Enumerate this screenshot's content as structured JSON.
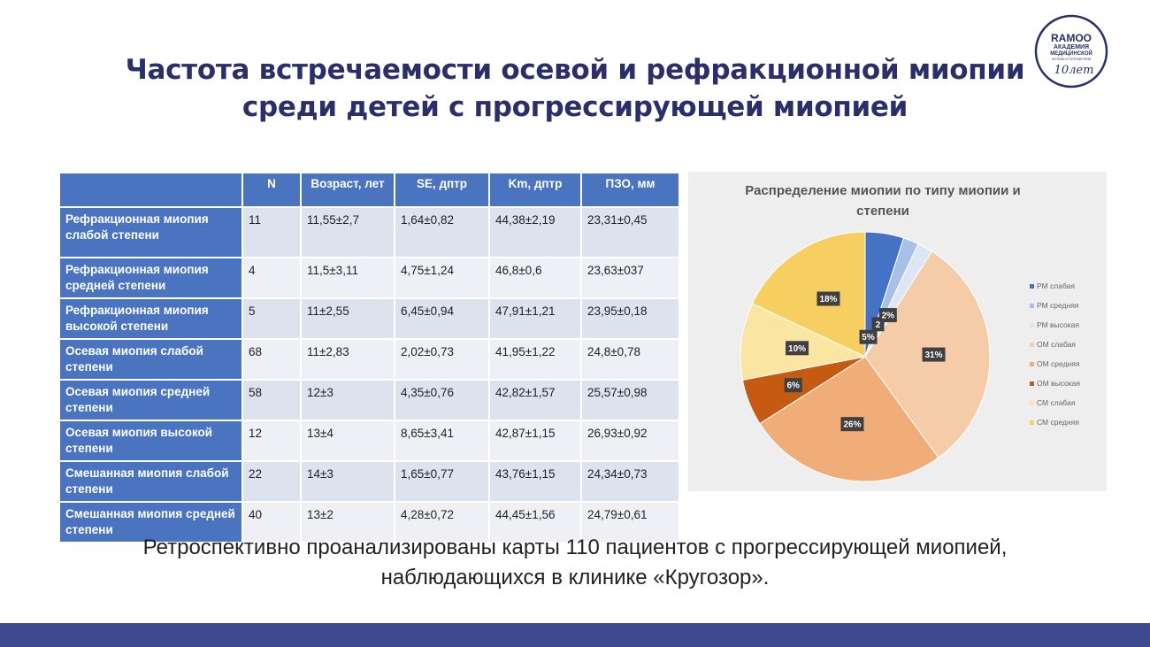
{
  "slide": {
    "title_line1": "Частота встречаемости осевой и рефракционной миопии",
    "title_line2": "среди детей с прогрессирующей миопией",
    "logo": {
      "line1": "RAMOO",
      "line2": "АКАДЕМИЯ",
      "line3": "МЕДИЦИНСКОЙ",
      "line4": "ОПТИКИ И ОПТОМЕТРИИ",
      "years": "10лет"
    },
    "bottom_line1": "Ретроспективно проанализированы карты 110 пациентов с прогрессирующей миопией,",
    "bottom_line2": "наблюдающихся в клинике «Кругозор».",
    "footer_color": "#3a4a8c"
  },
  "table": {
    "headers": [
      "",
      "N",
      "Возраст, лет",
      "SE, дптр",
      "Km, дптр",
      "ПЗО, мм"
    ],
    "rows": [
      {
        "label": "Рефракционная миопия слабой степени",
        "cells": [
          "11",
          "11,55±2,7",
          "1,64±0,82",
          "44,38±2,19",
          "23,31±0,45"
        ]
      },
      {
        "label": "Рефракционная миопия средней степени",
        "cells": [
          "4",
          "11,5±3,11",
          "4,75±1,24",
          "46,8±0,6",
          "23,63±037"
        ]
      },
      {
        "label": "Рефракционная миопия высокой степени",
        "cells": [
          "5",
          "11±2,55",
          "6,45±0,94",
          "47,91±1,21",
          "23,95±0,18"
        ]
      },
      {
        "label": "Осевая миопия слабой степени",
        "cells": [
          "68",
          "11±2,83",
          "2,02±0,73",
          "41,95±1,22",
          "24,8±0,78"
        ]
      },
      {
        "label": "Осевая миопия средней степени",
        "cells": [
          "58",
          "12±3",
          "4,35±0,76",
          "42,82±1,57",
          "25,57±0,98"
        ]
      },
      {
        "label": "Осевая миопия высокой степени",
        "cells": [
          "12",
          "13±4",
          "8,65±3,41",
          "42,87±1,15",
          "26,93±0,92"
        ]
      },
      {
        "label": "Смешанная миопия слабой степени",
        "cells": [
          "22",
          "14±3",
          "1,65±0,77",
          "43,76±1,15",
          "24,34±0,73"
        ]
      },
      {
        "label": "Смешанная миопия средней степени",
        "cells": [
          "40",
          "13±2",
          "4,28±0,72",
          "44,45±1,56",
          "24,79±0,61"
        ]
      }
    ]
  },
  "chart_data": {
    "type": "pie",
    "title_line1": "Распределение миопии по типу миопии и",
    "title_line2": "степени",
    "legend_position": "right",
    "slices": [
      {
        "name": "РМ слабая",
        "value": 5,
        "label": "5%",
        "color": "#4472c4"
      },
      {
        "name": "РМ средняя",
        "value": 2,
        "label": "2",
        "color": "#a9c0e6"
      },
      {
        "name": "РМ высокая",
        "value": 2,
        "label": "2%",
        "color": "#dce6f4"
      },
      {
        "name": "ОМ слабая",
        "value": 31,
        "label": "31%",
        "color": "#f4cda8"
      },
      {
        "name": "ОМ средняя",
        "value": 26,
        "label": "26%",
        "color": "#f0ad78"
      },
      {
        "name": "ОМ высокая",
        "value": 6,
        "label": "6%",
        "color": "#c55a11"
      },
      {
        "name": "СМ слабая",
        "value": 10,
        "label": "10%",
        "color": "#fbe5a3"
      },
      {
        "name": "СМ средняя",
        "value": 18,
        "label": "18%",
        "color": "#f6cf60"
      }
    ]
  }
}
